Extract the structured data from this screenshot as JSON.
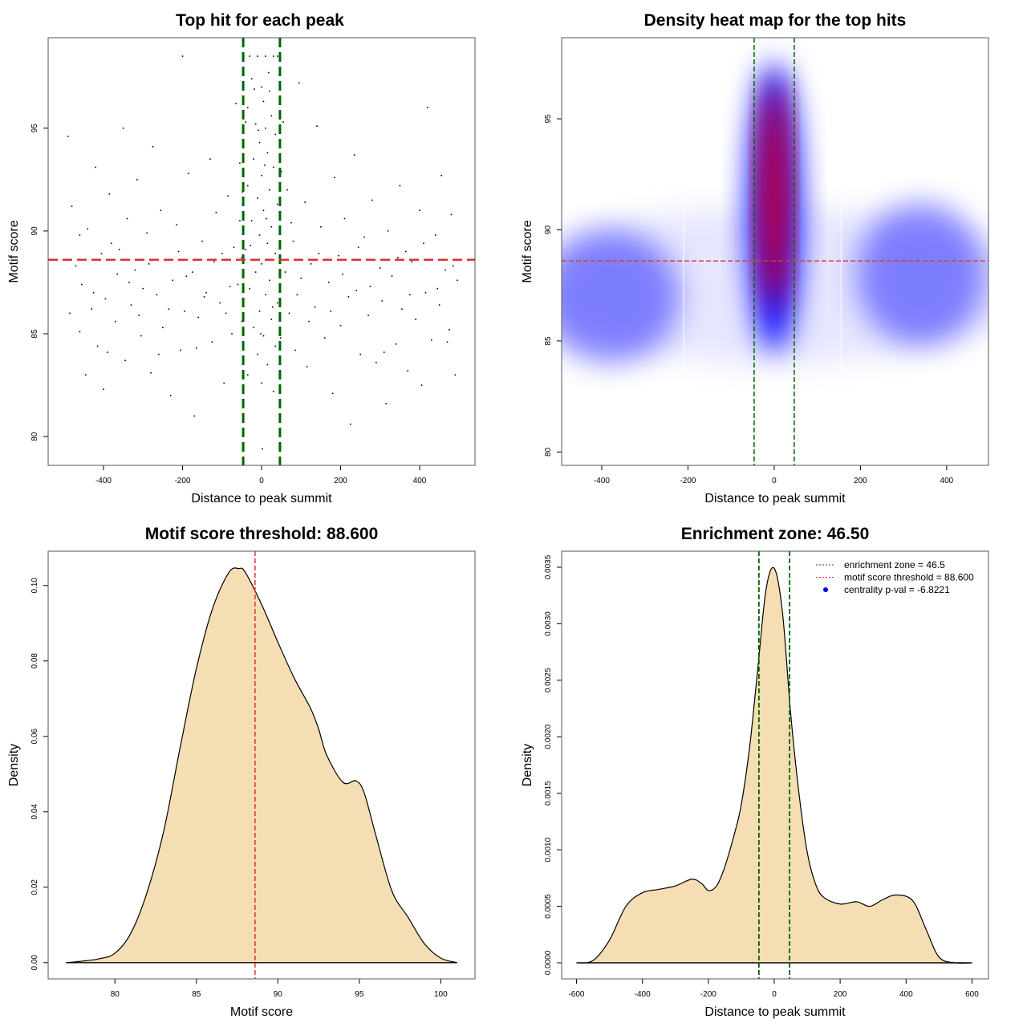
{
  "chart_data": [
    {
      "type": "scatter",
      "title": "Top hit for each peak",
      "xlabel": "Distance to peak summit",
      "ylabel": "Motif score",
      "xlim": [
        -540,
        540
      ],
      "ylim": [
        78.6,
        99.4
      ],
      "xticks": [
        -400,
        -200,
        0,
        200,
        400
      ],
      "yticks": [
        80,
        85,
        90,
        95
      ],
      "vlines": [
        -46.5,
        46.5
      ],
      "hline": 88.6,
      "vline_color": "#006400",
      "hline_color": "#e03030",
      "points": [
        [
          -490,
          94.6
        ],
        [
          -480,
          91.2
        ],
        [
          -470,
          88.3
        ],
        [
          -460,
          85.1
        ],
        [
          -455,
          87.4
        ],
        [
          -445,
          83.0
        ],
        [
          -440,
          90.1
        ],
        [
          -430,
          86.2
        ],
        [
          -420,
          93.1
        ],
        [
          -415,
          84.4
        ],
        [
          -405,
          88.9
        ],
        [
          -400,
          82.3
        ],
        [
          -395,
          86.7
        ],
        [
          -385,
          91.8
        ],
        [
          -380,
          89.4
        ],
        [
          -370,
          85.6
        ],
        [
          -365,
          87.9
        ],
        [
          -350,
          95.0
        ],
        [
          -345,
          83.7
        ],
        [
          -340,
          90.6
        ],
        [
          -330,
          86.4
        ],
        [
          -320,
          88.1
        ],
        [
          -315,
          92.5
        ],
        [
          -305,
          84.9
        ],
        [
          -300,
          87.2
        ],
        [
          -290,
          89.9
        ],
        [
          -280,
          83.1
        ],
        [
          -275,
          94.1
        ],
        [
          -265,
          86.9
        ],
        [
          -255,
          91.0
        ],
        [
          -250,
          85.3
        ],
        [
          -240,
          88.6
        ],
        [
          -230,
          82.0
        ],
        [
          -225,
          87.6
        ],
        [
          -215,
          90.3
        ],
        [
          -205,
          84.2
        ],
        [
          -200,
          98.5
        ],
        [
          -195,
          86.1
        ],
        [
          -185,
          92.8
        ],
        [
          -175,
          88.0
        ],
        [
          -170,
          81.0
        ],
        [
          -160,
          85.8
        ],
        [
          -150,
          89.5
        ],
        [
          -140,
          87.0
        ],
        [
          -130,
          93.5
        ],
        [
          -125,
          84.6
        ],
        [
          -115,
          90.9
        ],
        [
          -105,
          86.5
        ],
        [
          -100,
          88.9
        ],
        [
          -95,
          82.6
        ],
        [
          -85,
          91.7
        ],
        [
          -80,
          87.3
        ],
        [
          -75,
          85.0
        ],
        [
          -70,
          89.2
        ],
        [
          -65,
          96.2
        ],
        [
          65,
          92.0
        ],
        [
          70,
          86.0
        ],
        [
          80,
          89.5
        ],
        [
          85,
          84.2
        ],
        [
          95,
          97.2
        ],
        [
          100,
          87.7
        ],
        [
          110,
          91.4
        ],
        [
          115,
          83.4
        ],
        [
          125,
          88.4
        ],
        [
          135,
          86.3
        ],
        [
          140,
          95.1
        ],
        [
          150,
          90.2
        ],
        [
          160,
          84.8
        ],
        [
          170,
          87.5
        ],
        [
          180,
          82.1
        ],
        [
          185,
          92.6
        ],
        [
          195,
          88.8
        ],
        [
          200,
          85.4
        ],
        [
          210,
          90.6
        ],
        [
          220,
          86.8
        ],
        [
          225,
          80.6
        ],
        [
          235,
          93.7
        ],
        [
          240,
          87.1
        ],
        [
          250,
          84.0
        ],
        [
          260,
          89.7
        ],
        [
          270,
          85.9
        ],
        [
          280,
          91.5
        ],
        [
          290,
          83.6
        ],
        [
          300,
          88.2
        ],
        [
          305,
          86.6
        ],
        [
          315,
          81.6
        ],
        [
          320,
          90.0
        ],
        [
          330,
          87.8
        ],
        [
          340,
          84.5
        ],
        [
          350,
          92.2
        ],
        [
          355,
          86.2
        ],
        [
          365,
          89.0
        ],
        [
          370,
          83.2
        ],
        [
          380,
          88.5
        ],
        [
          390,
          85.7
        ],
        [
          400,
          91.0
        ],
        [
          405,
          82.5
        ],
        [
          415,
          87.0
        ],
        [
          420,
          96.0
        ],
        [
          430,
          84.7
        ],
        [
          440,
          89.8
        ],
        [
          450,
          86.4
        ],
        [
          455,
          92.7
        ],
        [
          465,
          88.1
        ],
        [
          475,
          85.2
        ],
        [
          480,
          90.8
        ],
        [
          490,
          83.0
        ],
        [
          495,
          87.6
        ],
        [
          -485,
          86.0
        ],
        [
          -460,
          89.8
        ],
        [
          -425,
          87.0
        ],
        [
          -390,
          84.1
        ],
        [
          -360,
          89.1
        ],
        [
          -335,
          87.5
        ],
        [
          -310,
          85.9
        ],
        [
          -285,
          88.4
        ],
        [
          -260,
          84.0
        ],
        [
          -235,
          86.2
        ],
        [
          -210,
          89.0
        ],
        [
          -190,
          87.8
        ],
        [
          -165,
          84.3
        ],
        [
          -145,
          86.8
        ],
        [
          -120,
          88.5
        ],
        [
          -90,
          86.0
        ],
        [
          -60,
          87.4
        ],
        [
          -55,
          90.5
        ],
        [
          -50,
          85.6
        ],
        [
          60,
          88.0
        ],
        [
          75,
          90.4
        ],
        [
          90,
          86.9
        ],
        [
          120,
          85.6
        ],
        [
          145,
          88.9
        ],
        [
          175,
          86.1
        ],
        [
          205,
          87.9
        ],
        [
          245,
          89.2
        ],
        [
          275,
          87.3
        ],
        [
          310,
          84.1
        ],
        [
          345,
          88.7
        ],
        [
          375,
          86.9
        ],
        [
          410,
          89.4
        ],
        [
          445,
          87.2
        ],
        [
          470,
          84.6
        ],
        [
          485,
          88.3
        ],
        [
          -45,
          98.5
        ],
        [
          -30,
          98.5
        ],
        [
          -10,
          98.5
        ],
        [
          10,
          98.5
        ],
        [
          30,
          98.5
        ],
        [
          40,
          98.5
        ],
        [
          -25,
          97.4
        ],
        [
          0,
          97.0
        ],
        [
          20,
          96.8
        ],
        [
          -35,
          96.0
        ],
        [
          5,
          96.3
        ],
        [
          25,
          95.6
        ],
        [
          -15,
          95.2
        ],
        [
          -40,
          95.3
        ],
        [
          10,
          95.0
        ],
        [
          35,
          94.7
        ],
        [
          -5,
          94.3
        ],
        [
          15,
          93.8
        ],
        [
          -20,
          93.5
        ],
        [
          30,
          93.1
        ],
        [
          0,
          92.7
        ],
        [
          -35,
          92.2
        ],
        [
          20,
          92.0
        ],
        [
          -10,
          91.6
        ],
        [
          40,
          91.3
        ],
        [
          5,
          91.0
        ],
        [
          -25,
          90.5
        ],
        [
          25,
          90.2
        ],
        [
          -5,
          89.8
        ],
        [
          15,
          89.4
        ],
        [
          -40,
          89.1
        ],
        [
          35,
          88.9
        ],
        [
          0,
          88.4
        ],
        [
          -15,
          88.0
        ],
        [
          20,
          87.6
        ],
        [
          -30,
          87.2
        ],
        [
          10,
          86.9
        ],
        [
          40,
          86.5
        ],
        [
          -5,
          86.1
        ],
        [
          25,
          85.7
        ],
        [
          -20,
          85.3
        ],
        [
          5,
          84.9
        ],
        [
          35,
          84.4
        ],
        [
          -10,
          84.0
        ],
        [
          15,
          83.5
        ],
        [
          -35,
          83.0
        ],
        [
          0,
          82.6
        ],
        [
          30,
          82.2
        ],
        [
          -45,
          90.8
        ],
        [
          45,
          87.9
        ],
        [
          -50,
          88.7
        ],
        [
          50,
          92.9
        ],
        [
          -55,
          93.3
        ],
        [
          55,
          95.3
        ],
        [
          -8,
          94.9
        ],
        [
          12,
          90.6
        ],
        [
          -28,
          89.3
        ],
        [
          28,
          86.3
        ],
        [
          -2,
          85.0
        ],
        [
          8,
          93.2
        ],
        [
          -18,
          96.9
        ],
        [
          18,
          97.7
        ],
        [
          -48,
          91.9
        ],
        [
          48,
          84.8
        ],
        [
          2,
          79.4
        ]
      ]
    },
    {
      "type": "heatmap",
      "title": "Density heat map for the top hits",
      "xlabel": "Distance to peak summit",
      "ylabel": "Motif score",
      "xlim": [
        -493,
        497
      ],
      "ylim": [
        79.4,
        98.65
      ],
      "xticks": [
        -400,
        -200,
        0,
        200,
        400
      ],
      "yticks": [
        80,
        85,
        90,
        95
      ],
      "vlines": [
        -46.5,
        46.5
      ],
      "hline": 88.6,
      "white_lines": [
        -210,
        155
      ],
      "colors": {
        "low": "#ffffff",
        "mid": "#0000ff",
        "high": "#ff0000"
      },
      "density_blobs": [
        {
          "x": 0,
          "y": 87.5,
          "sx": 600,
          "sy": 3.5,
          "level": "low",
          "opacity": 0.35
        },
        {
          "x": -380,
          "y": 87.0,
          "sx": 160,
          "sy": 3.0,
          "level": "mid",
          "opacity": 0.45
        },
        {
          "x": 340,
          "y": 88.0,
          "sx": 150,
          "sy": 3.2,
          "level": "mid",
          "opacity": 0.45
        },
        {
          "x": 0,
          "y": 91.0,
          "sx": 60,
          "sy": 6.5,
          "level": "mid",
          "opacity": 1.0
        },
        {
          "x": 0,
          "y": 91.5,
          "sx": 30,
          "sy": 5.0,
          "level": "high",
          "opacity": 0.95
        }
      ]
    },
    {
      "type": "area",
      "title": "Motif score threshold: 88.600",
      "xlabel": "Motif score",
      "ylabel": "Density",
      "xlim": [
        75.9,
        102.1
      ],
      "ylim": [
        -0.0043,
        0.1091
      ],
      "xticks": [
        80,
        85,
        90,
        95,
        100
      ],
      "yticks": [
        0.0,
        0.02,
        0.04,
        0.06,
        0.08,
        0.1
      ],
      "ytick_labels": [
        "0.00",
        "0.02",
        "0.04",
        "0.06",
        "0.08",
        "0.10"
      ],
      "vline": 88.6,
      "vline_color": "#e03030",
      "fill": "#f5deb3",
      "x": [
        77,
        78,
        79,
        80,
        81,
        82,
        83,
        84,
        85,
        86,
        87,
        87.6,
        88,
        89,
        90,
        91,
        92,
        92.5,
        93,
        94,
        94.8,
        95.3,
        96,
        97,
        98,
        99,
        100,
        101
      ],
      "y": [
        0,
        0.0004,
        0.001,
        0.0025,
        0.008,
        0.019,
        0.035,
        0.057,
        0.078,
        0.094,
        0.1035,
        0.1045,
        0.1035,
        0.095,
        0.085,
        0.0755,
        0.0675,
        0.062,
        0.055,
        0.0478,
        0.0482,
        0.045,
        0.034,
        0.019,
        0.012,
        0.005,
        0.0012,
        0
      ]
    },
    {
      "type": "area",
      "title": "Enrichment zone: 46.50",
      "xlabel": "Distance to peak summit",
      "ylabel": "Density",
      "xlim": [
        -645,
        650
      ],
      "ylim": [
        -0.000142,
        0.003642
      ],
      "xticks": [
        -600,
        -400,
        -200,
        0,
        200,
        400,
        600
      ],
      "yticks": [
        0,
        0.0005,
        0.001,
        0.0015,
        0.002,
        0.0025,
        0.003,
        0.0035
      ],
      "ytick_labels": [
        "0.0000",
        "0.0005",
        "0.0010",
        "0.0015",
        "0.0020",
        "0.0025",
        "0.0030",
        "0.0035"
      ],
      "vlines": [
        -46.5,
        46.5
      ],
      "vline_color": "#006400",
      "fill": "#f5deb3",
      "x": [
        -600,
        -550,
        -500,
        -450,
        -400,
        -350,
        -300,
        -250,
        -220,
        -200,
        -175,
        -150,
        -120,
        -100,
        -75,
        -50,
        -25,
        0,
        25,
        50,
        75,
        100,
        125,
        150,
        200,
        250,
        290,
        330,
        370,
        420,
        460,
        500,
        550,
        600
      ],
      "y": [
        0,
        2e-05,
        0.0002,
        0.0005,
        0.00062,
        0.00065,
        0.00068,
        0.00074,
        0.0007,
        0.00064,
        0.00068,
        0.00085,
        0.00115,
        0.0014,
        0.0019,
        0.0026,
        0.0033,
        0.00349,
        0.0031,
        0.0022,
        0.0015,
        0.00098,
        0.0007,
        0.00058,
        0.00052,
        0.00054,
        0.0005,
        0.00056,
        0.0006,
        0.00055,
        0.0003,
        5e-05,
        0,
        0
      ],
      "legend": {
        "position": "top-right",
        "items": [
          {
            "label": "enrichment zone = 46.5",
            "color": "#006400",
            "style": "dotted-line"
          },
          {
            "label": "motif score threshold = 88.600",
            "color": "#e03030",
            "style": "dotted-line"
          },
          {
            "label": "centrality p-val = -6.8221",
            "color": "#0000ff",
            "style": "point"
          }
        ]
      }
    }
  ]
}
